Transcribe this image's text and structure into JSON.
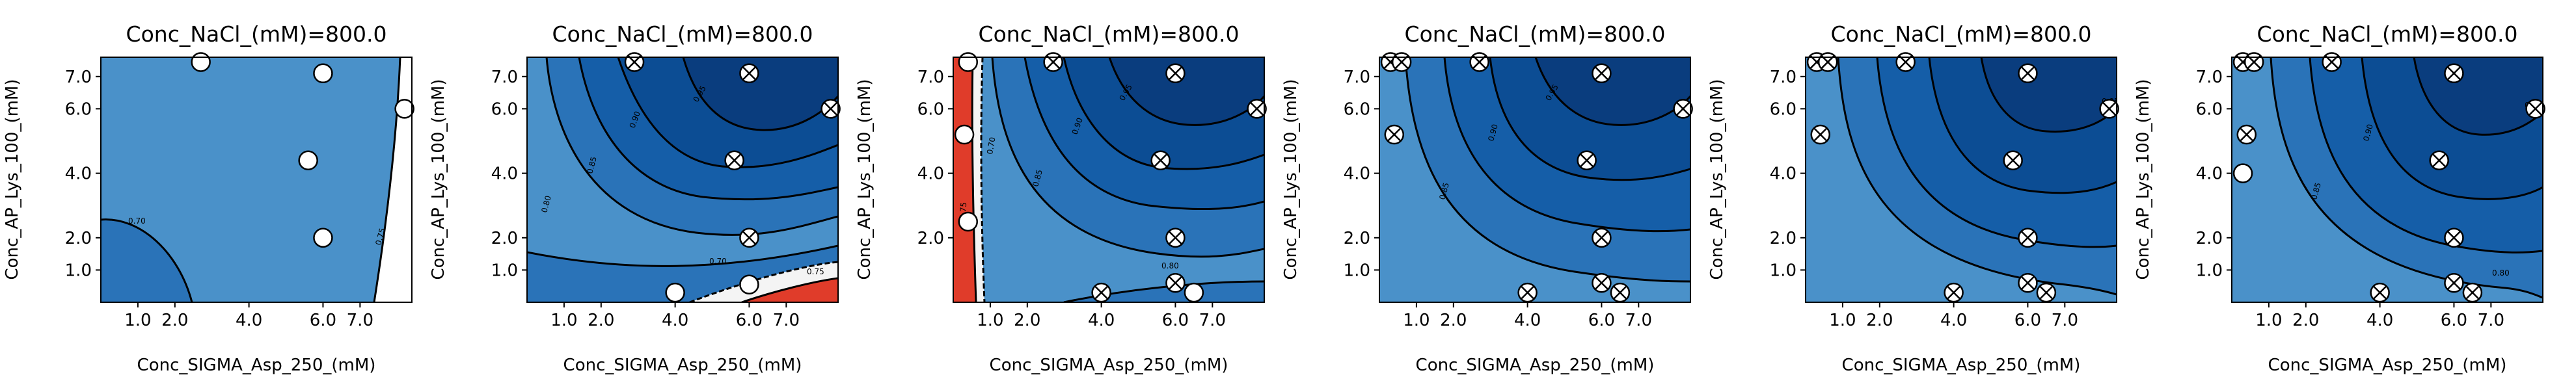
{
  "chart_data": [
    {
      "type": "contour",
      "title": "Conc_NaCl_(mM)=800.0",
      "xlabel": "Conc_SIGMA_Asp_250_(mM)",
      "ylabel": "Conc_AP_Lys_100_(mM)",
      "xticks": [
        "1.0",
        "2.0",
        "4.0",
        "6.0",
        "7.0"
      ],
      "yticks": [
        "1.0",
        "2.0",
        "4.0",
        "6.0",
        "7.0"
      ],
      "contour_labels": [
        "0.70",
        "0.75"
      ],
      "points": [
        {
          "x": 2.7,
          "y": 7.45,
          "marker": "circle"
        },
        {
          "x": 6.0,
          "y": 7.1,
          "marker": "circle"
        },
        {
          "x": 8.2,
          "y": 6.0,
          "marker": "circle"
        },
        {
          "x": 5.6,
          "y": 4.4,
          "marker": "circle"
        },
        {
          "x": 6.0,
          "y": 2.0,
          "marker": "circle"
        }
      ]
    },
    {
      "type": "contour",
      "title": "Conc_NaCl_(mM)=800.0",
      "xlabel": "Conc_SIGMA_Asp_250_(mM)",
      "ylabel": "Conc_AP_Lys_100_(mM)",
      "xticks": [
        "1.0",
        "2.0",
        "4.0",
        "6.0",
        "7.0"
      ],
      "yticks": [
        "1.0",
        "2.0",
        "4.0",
        "6.0",
        "7.0"
      ],
      "contour_labels": [
        "0.70",
        "0.75",
        "0.80",
        "0.85",
        "0.90",
        "0.95"
      ],
      "points": [
        {
          "x": 2.9,
          "y": 7.45,
          "marker": "crossed"
        },
        {
          "x": 6.0,
          "y": 7.1,
          "marker": "crossed"
        },
        {
          "x": 8.2,
          "y": 6.0,
          "marker": "crossed"
        },
        {
          "x": 5.6,
          "y": 4.4,
          "marker": "crossed"
        },
        {
          "x": 6.0,
          "y": 2.0,
          "marker": "crossed"
        },
        {
          "x": 4.0,
          "y": 0.3,
          "marker": "circle"
        },
        {
          "x": 6.0,
          "y": 0.55,
          "marker": "circle"
        }
      ]
    },
    {
      "type": "contour",
      "title": "Conc_NaCl_(mM)=800.0",
      "xlabel": "Conc_SIGMA_Asp_250_(mM)",
      "ylabel": "Conc_AP_Lys_100_(mM)",
      "xticks": [
        "1.0",
        "2.0",
        "4.0",
        "6.0",
        "7.0"
      ],
      "yticks": [
        "2.0",
        "4.0",
        "6.0",
        "7.0"
      ],
      "contour_labels": [
        "0.70",
        "0.75",
        "0.80",
        "0.85",
        "0.90",
        "0.95"
      ],
      "points": [
        {
          "x": 0.4,
          "y": 7.45,
          "marker": "circle"
        },
        {
          "x": 0.3,
          "y": 5.2,
          "marker": "circle"
        },
        {
          "x": 0.4,
          "y": 2.5,
          "marker": "circle"
        },
        {
          "x": 2.7,
          "y": 7.45,
          "marker": "crossed"
        },
        {
          "x": 6.0,
          "y": 7.1,
          "marker": "crossed"
        },
        {
          "x": 8.2,
          "y": 6.0,
          "marker": "crossed"
        },
        {
          "x": 5.6,
          "y": 4.4,
          "marker": "crossed"
        },
        {
          "x": 6.0,
          "y": 2.0,
          "marker": "crossed"
        },
        {
          "x": 6.0,
          "y": 0.6,
          "marker": "crossed"
        },
        {
          "x": 4.0,
          "y": 0.3,
          "marker": "crossed"
        },
        {
          "x": 6.5,
          "y": 0.3,
          "marker": "circle"
        }
      ]
    },
    {
      "type": "contour",
      "title": "Conc_NaCl_(mM)=800.0",
      "xlabel": "Conc_SIGMA_Asp_250_(mM)",
      "ylabel": "Conc_AP_Lys_100_(mM)",
      "xticks": [
        "1.0",
        "2.0",
        "4.0",
        "6.0",
        "7.0"
      ],
      "yticks": [
        "1.0",
        "2.0",
        "4.0",
        "6.0",
        "7.0"
      ],
      "contour_labels": [
        "0.85",
        "0.90",
        "0.95"
      ],
      "points": [
        {
          "x": 0.3,
          "y": 7.45,
          "marker": "crossed"
        },
        {
          "x": 0.6,
          "y": 7.45,
          "marker": "crossed"
        },
        {
          "x": 0.4,
          "y": 5.2,
          "marker": "crossed"
        },
        {
          "x": 2.7,
          "y": 7.45,
          "marker": "crossed"
        },
        {
          "x": 6.0,
          "y": 7.1,
          "marker": "crossed"
        },
        {
          "x": 8.2,
          "y": 6.0,
          "marker": "crossed"
        },
        {
          "x": 5.6,
          "y": 4.4,
          "marker": "crossed"
        },
        {
          "x": 6.0,
          "y": 2.0,
          "marker": "crossed"
        },
        {
          "x": 6.0,
          "y": 0.6,
          "marker": "crossed"
        },
        {
          "x": 6.5,
          "y": 0.3,
          "marker": "crossed"
        },
        {
          "x": 4.0,
          "y": 0.3,
          "marker": "crossed"
        }
      ]
    },
    {
      "type": "contour",
      "title": "Conc_NaCl_(mM)=800.0",
      "xlabel": "Conc_SIGMA_Asp_250_(mM)",
      "ylabel": "Conc_AP_Lys_100_(mM)",
      "xticks": [
        "1.0",
        "2.0",
        "4.0",
        "6.0",
        "7.0"
      ],
      "yticks": [
        "1.0",
        "2.0",
        "4.0",
        "6.0",
        "7.0"
      ],
      "contour_labels": [
        "0.95"
      ],
      "points": [
        {
          "x": 0.3,
          "y": 7.45,
          "marker": "crossed"
        },
        {
          "x": 0.6,
          "y": 7.45,
          "marker": "crossed"
        },
        {
          "x": 0.4,
          "y": 5.2,
          "marker": "crossed"
        },
        {
          "x": 2.7,
          "y": 7.45,
          "marker": "crossed"
        },
        {
          "x": 6.0,
          "y": 7.1,
          "marker": "crossed"
        },
        {
          "x": 8.2,
          "y": 6.0,
          "marker": "crossed"
        },
        {
          "x": 5.6,
          "y": 4.4,
          "marker": "crossed"
        },
        {
          "x": 6.0,
          "y": 2.0,
          "marker": "crossed"
        },
        {
          "x": 6.0,
          "y": 0.6,
          "marker": "crossed"
        },
        {
          "x": 6.5,
          "y": 0.3,
          "marker": "crossed"
        },
        {
          "x": 4.0,
          "y": 0.3,
          "marker": "crossed"
        }
      ]
    },
    {
      "type": "contour",
      "title": "Conc_NaCl_(mM)=800.0",
      "xlabel": "Conc_SIGMA_Asp_250_(mM)",
      "ylabel": "Conc_AP_Lys_100_(mM)",
      "xticks": [
        "1.0",
        "2.0",
        "4.0",
        "6.0",
        "7.0"
      ],
      "yticks": [
        "1.0",
        "2.0",
        "4.0",
        "6.0",
        "7.0"
      ],
      "contour_labels": [
        "0.80",
        "0.85",
        "0.90",
        "0.95"
      ],
      "points": [
        {
          "x": 0.3,
          "y": 7.45,
          "marker": "crossed"
        },
        {
          "x": 0.6,
          "y": 7.45,
          "marker": "crossed"
        },
        {
          "x": 0.4,
          "y": 5.2,
          "marker": "crossed"
        },
        {
          "x": 0.3,
          "y": 4.0,
          "marker": "circle"
        },
        {
          "x": 2.7,
          "y": 7.45,
          "marker": "crossed"
        },
        {
          "x": 6.0,
          "y": 7.1,
          "marker": "crossed"
        },
        {
          "x": 8.2,
          "y": 6.0,
          "marker": "crossed"
        },
        {
          "x": 5.6,
          "y": 4.4,
          "marker": "crossed"
        },
        {
          "x": 6.0,
          "y": 2.0,
          "marker": "crossed"
        },
        {
          "x": 6.0,
          "y": 0.6,
          "marker": "crossed"
        },
        {
          "x": 6.5,
          "y": 0.3,
          "marker": "crossed"
        },
        {
          "x": 4.0,
          "y": 0.3,
          "marker": "crossed"
        }
      ]
    }
  ]
}
